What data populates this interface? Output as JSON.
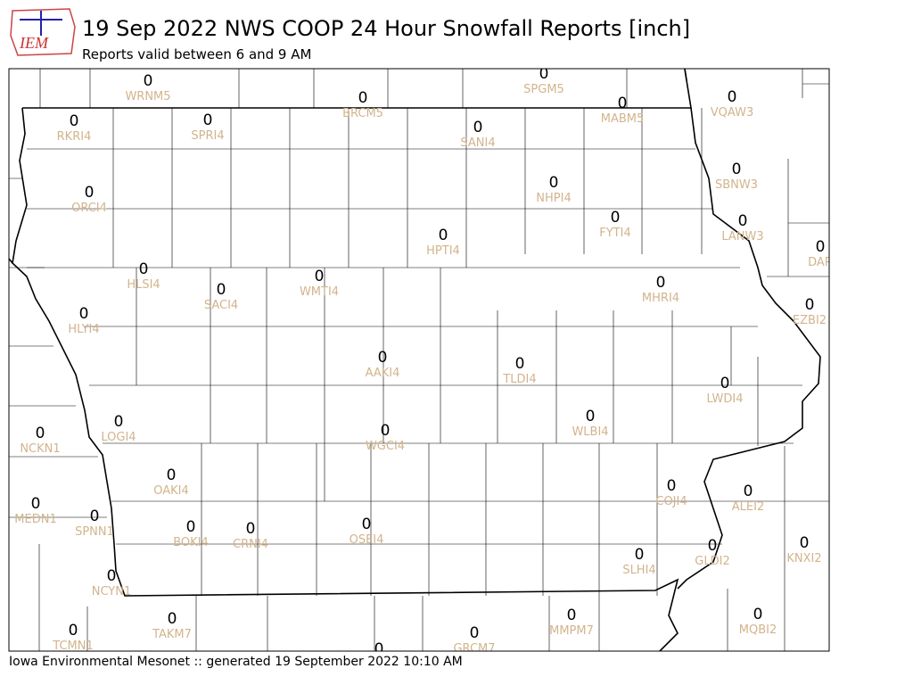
{
  "logo_text": "IEM",
  "title": "19 Sep 2022 NWS COOP 24 Hour Snowfall Reports [inch]",
  "subtitle": "Reports valid between 6 and 9 AM",
  "footer": "Iowa Environmental Mesonet :: generated 19 September 2022 10:10 AM",
  "stations": [
    {
      "id": "WRNM5",
      "value": 0
    },
    {
      "id": "SPGM5",
      "value": 0
    },
    {
      "id": "BRCM5",
      "value": 0
    },
    {
      "id": "MABM5",
      "value": 0
    },
    {
      "id": "VQAW3",
      "value": 0
    },
    {
      "id": "RKRI4",
      "value": 0
    },
    {
      "id": "SPRI4",
      "value": 0
    },
    {
      "id": "SANI4",
      "value": 0
    },
    {
      "id": "SBNW3",
      "value": 0
    },
    {
      "id": "NHPI4",
      "value": 0
    },
    {
      "id": "ORCI4",
      "value": 0
    },
    {
      "id": "FYTI4",
      "value": 0
    },
    {
      "id": "LANW3",
      "value": 0
    },
    {
      "id": "HPTI4",
      "value": 0
    },
    {
      "id": "DAR",
      "value": 0
    },
    {
      "id": "HLSI4",
      "value": 0
    },
    {
      "id": "WMTI4",
      "value": 0
    },
    {
      "id": "SACI4",
      "value": 0
    },
    {
      "id": "MHRI4",
      "value": 0
    },
    {
      "id": "EZBI2",
      "value": 0
    },
    {
      "id": "HLYI4",
      "value": 0
    },
    {
      "id": "AAKI4",
      "value": 0
    },
    {
      "id": "TLDI4",
      "value": 0
    },
    {
      "id": "LWDI4",
      "value": 0
    },
    {
      "id": "LOGI4",
      "value": 0
    },
    {
      "id": "WLBI4",
      "value": 0
    },
    {
      "id": "NCKN1",
      "value": 0
    },
    {
      "id": "WGCI4",
      "value": 0
    },
    {
      "id": "OAKI4",
      "value": 0
    },
    {
      "id": "COJI4",
      "value": 0
    },
    {
      "id": "ALEI2",
      "value": 0
    },
    {
      "id": "MEDN1",
      "value": 0
    },
    {
      "id": "SPNN1",
      "value": 0
    },
    {
      "id": "BOKI4",
      "value": 0
    },
    {
      "id": "CRNI4",
      "value": 0
    },
    {
      "id": "OSEI4",
      "value": 0
    },
    {
      "id": "KNXI2",
      "value": 0
    },
    {
      "id": "GLDI2",
      "value": 0
    },
    {
      "id": "SLHI4",
      "value": 0
    },
    {
      "id": "NCYN1",
      "value": 0
    },
    {
      "id": "TAKM7",
      "value": 0
    },
    {
      "id": "MMPM7",
      "value": 0
    },
    {
      "id": "MQBI2",
      "value": 0
    },
    {
      "id": "TCMN1",
      "value": 0
    },
    {
      "id": "GRCM7",
      "value": 0
    },
    {
      "value": 0
    }
  ]
}
